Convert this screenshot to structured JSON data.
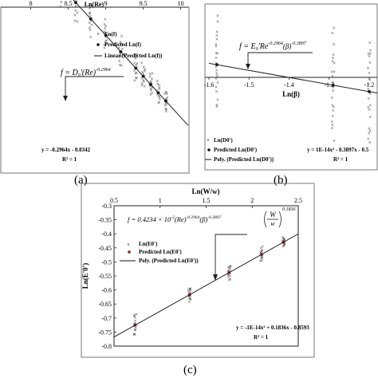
{
  "chart_data": [
    {
      "panel": "(a)",
      "type": "scatter",
      "xlabel": "Ln(Re)",
      "x_ticks": [
        "8",
        "8.5",
        "9",
        "9.5",
        "10"
      ],
      "xlim": [
        7.6,
        10.1
      ],
      "ylim": [
        -3.2,
        -2.6
      ],
      "equation": "f = D0'(Re)^-0.2964",
      "fit_line": "y = -0.2964x - 0.0342",
      "r2": "R² = 1",
      "legend": [
        "Ln(f)",
        "Predicted Ln(f)",
        "Linear (Predicted Ln(f))"
      ],
      "fit": {
        "slope": -0.2964,
        "intercept": -0.0342
      },
      "x_groups": [
        8.4,
        8.6,
        8.8,
        9.0,
        9.2,
        9.4,
        9.5,
        9.6,
        9.7,
        9.8
      ],
      "scatter_spread": [
        0.09,
        0.09,
        0.07,
        0.06,
        0.06,
        0.06,
        0.05,
        0.05,
        0.05,
        0.05
      ]
    },
    {
      "panel": "(b)",
      "type": "scatter",
      "xlabel": "Ln(β)",
      "x_ticks": [
        "-1.6",
        "-1.5",
        "-1.4",
        "-1.3",
        "-1.2"
      ],
      "xlim": [
        -1.6,
        -1.18
      ],
      "ylim": [
        -0.45,
        0.45
      ],
      "equation": "f = E0'Re^-0.2964(β)^-0.3897",
      "fit_line": "y = 1E-14x² - 0.3897x - 0.5",
      "r2": "R² = 1",
      "legend": [
        "Ln(D0')",
        "Predicted Ln(D0')",
        "Poly. (Predicted Ln(D0'))"
      ],
      "fit": {
        "slope": -0.3897,
        "intercept": -0.5
      },
      "x_groups": [
        -1.58,
        -1.29,
        -1.2
      ],
      "scatter_spread": [
        0.3,
        0.34,
        0.34
      ]
    },
    {
      "panel": "(c)",
      "type": "scatter",
      "xlabel": "Ln(W/w)",
      "ylabel": "Ln(E'0')",
      "x_ticks": [
        "0.5",
        "1",
        "1.5",
        "2",
        "2.5"
      ],
      "y_ticks": [
        "-0.3",
        "-0.35",
        "-0.4",
        "-0.45",
        "-0.5",
        "-0.55",
        "-0.6",
        "-0.65",
        "-0.7",
        "-0.75",
        "-0.8"
      ],
      "xlim": [
        0.5,
        2.5
      ],
      "ylim": [
        -0.8,
        -0.3
      ],
      "equation": "f = 0.4234 × 10⁻² (Re)^-0.2964 (β)^-0.3897 (W/w)^0.1836",
      "fit_line": "y = -1E-14x² + 0.1836x - 0.8593",
      "r2": "R² = 1",
      "legend": [
        "Ln(E0')",
        "Predicted Ln(E0')",
        "Poly. (Predicted Ln(E0'))"
      ],
      "fit": {
        "slope": 0.1836,
        "intercept": -0.8593
      },
      "x_groups": [
        0.73,
        1.32,
        1.75,
        2.1,
        2.34
      ],
      "scatter_spread": [
        0.05,
        0.03,
        0.03,
        0.03,
        0.02
      ]
    }
  ],
  "captions": {
    "a": "(a)",
    "b": "(b)",
    "c": "(c)"
  },
  "eq_c_parts": {
    "base": "f = 0.4234 × 10",
    "exp1": "-2",
    "mid": "(Re)",
    "exp2": "-0.2964",
    "beta": "(β)",
    "exp3": "-0.3897",
    "frac_top": "W",
    "frac_bot": "w",
    "exp4": "0.1836"
  },
  "eq_a_parts": {
    "base": "f = D",
    "sub": "0",
    "mid": "'(Re)",
    "exp": "-0.2964"
  },
  "eq_b_parts": {
    "base": "f = E",
    "sub": "0",
    "mid": "'Re",
    "exp1": "-0.2964",
    "beta": "(β)",
    "exp2": "-0.3897"
  }
}
